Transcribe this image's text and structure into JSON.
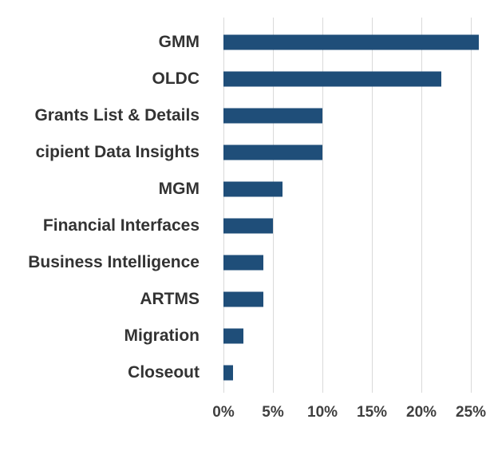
{
  "chart_data": {
    "type": "bar",
    "orientation": "horizontal",
    "title": "",
    "xlabel": "",
    "ylabel": "",
    "categories": [
      "GMM",
      "OLDC",
      "Grants List & Details",
      "cipient Data Insights",
      "MGM",
      "Financial Interfaces",
      "Business Intelligence",
      "ARTMS",
      "Migration",
      "Closeout"
    ],
    "values": [
      26,
      22,
      10,
      10,
      6,
      5,
      4,
      4,
      2,
      1
    ],
    "value_unit": "%",
    "x_tick_labels": [
      "0%",
      "5%",
      "10%",
      "15%",
      "20%",
      "25%"
    ],
    "x_tick_values": [
      0,
      5,
      10,
      15,
      20,
      25
    ],
    "axis_max": 25.8,
    "grid": true,
    "legend": false,
    "bar_color": "#1F4E79",
    "gridline_color": "#D9D9D9",
    "category_label_color": "#333333",
    "tick_label_color": "#404040",
    "background_color": "#FFFFFF"
  }
}
